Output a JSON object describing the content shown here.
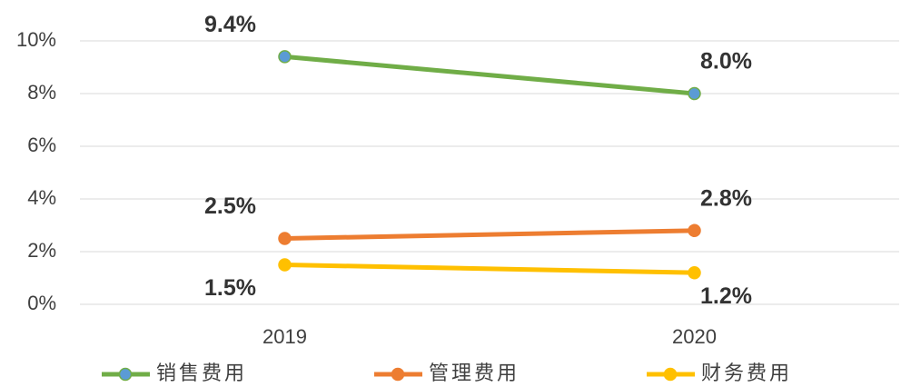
{
  "chart_data": {
    "type": "line",
    "categories": [
      "2019",
      "2020"
    ],
    "series": [
      {
        "name": "销售费用",
        "color": "#70ad47",
        "marker_color": "#5b9bd5",
        "values": [
          9.4,
          8.0
        ],
        "value_labels": [
          "9.4%",
          "8.0%"
        ]
      },
      {
        "name": "管理费用",
        "color": "#ed7d31",
        "marker_color": "#ed7d31",
        "values": [
          2.5,
          2.8
        ],
        "value_labels": [
          "2.5%",
          "2.8%"
        ]
      },
      {
        "name": "财务费用",
        "color": "#ffc000",
        "marker_color": "#ffc000",
        "values": [
          1.5,
          1.2
        ],
        "value_labels": [
          "1.5%",
          "1.2%"
        ]
      }
    ],
    "ylim": [
      0,
      10
    ],
    "yticks": [
      {
        "value": 0,
        "label": "0%"
      },
      {
        "value": 2,
        "label": "2%"
      },
      {
        "value": 4,
        "label": "4%"
      },
      {
        "value": 6,
        "label": "6%"
      },
      {
        "value": 8,
        "label": "8%"
      },
      {
        "value": 10,
        "label": "10%"
      }
    ],
    "grid": true,
    "legend": "bottom"
  }
}
